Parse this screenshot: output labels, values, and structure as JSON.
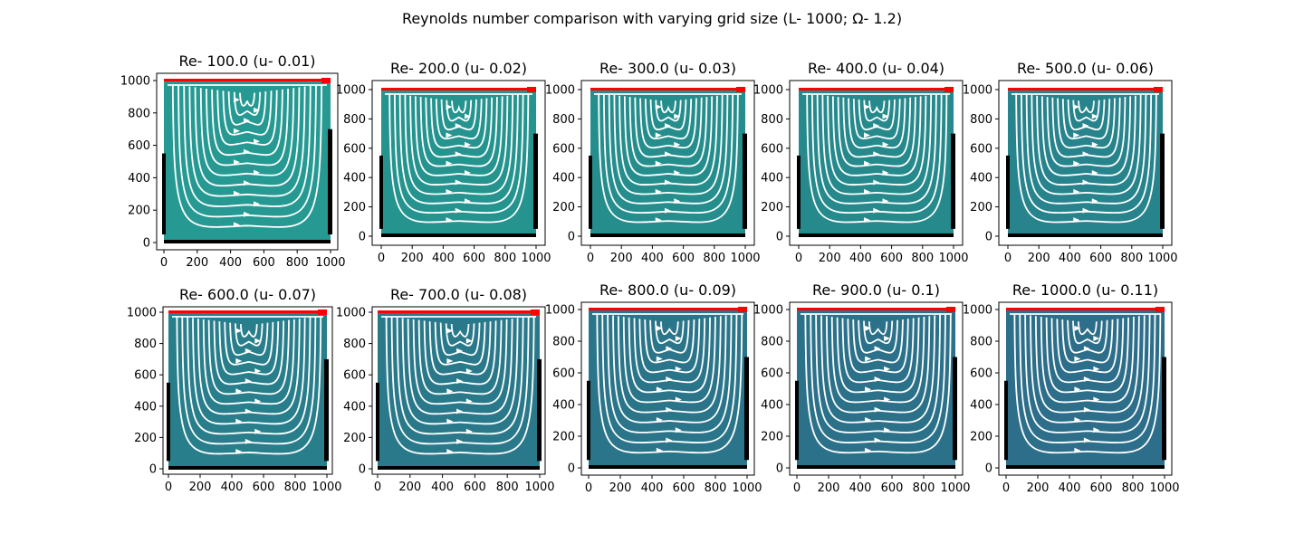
{
  "figure": {
    "suptitle": "Reynolds number comparison with varying grid size (L- 1000; Ω- 1.2)"
  },
  "colors": {
    "background": "#ffffff",
    "streamline": "#ffffff",
    "wall": "#000000",
    "lid": "#ff0000"
  },
  "chart_data": [
    {
      "type": "streamplot",
      "title": "Re- 100.0 (u- 0.01)",
      "xlim": [
        0,
        1000
      ],
      "ylim": [
        0,
        1000
      ],
      "xticks": [
        0,
        200,
        400,
        600,
        800,
        1000
      ],
      "yticks": [
        0,
        200,
        400,
        600,
        800,
        1000
      ],
      "fill": "#269a92"
    },
    {
      "type": "streamplot",
      "title": "Re- 200.0 (u- 0.02)",
      "xlim": [
        0,
        1000
      ],
      "ylim": [
        0,
        1000
      ],
      "xticks": [
        0,
        200,
        400,
        600,
        800,
        1000
      ],
      "yticks": [
        0,
        200,
        400,
        600,
        800,
        1000
      ],
      "fill": "#25948f"
    },
    {
      "type": "streamplot",
      "title": "Re- 300.0 (u- 0.03)",
      "xlim": [
        0,
        1000
      ],
      "ylim": [
        0,
        1000
      ],
      "xticks": [
        0,
        200,
        400,
        600,
        800,
        1000
      ],
      "yticks": [
        0,
        200,
        400,
        600,
        800,
        1000
      ],
      "fill": "#258e8d"
    },
    {
      "type": "streamplot",
      "title": "Re- 400.0 (u- 0.04)",
      "xlim": [
        0,
        1000
      ],
      "ylim": [
        0,
        1000
      ],
      "xticks": [
        0,
        200,
        400,
        600,
        800,
        1000
      ],
      "yticks": [
        0,
        200,
        400,
        600,
        800,
        1000
      ],
      "fill": "#26898c"
    },
    {
      "type": "streamplot",
      "title": "Re- 500.0 (u- 0.06)",
      "xlim": [
        0,
        1000
      ],
      "ylim": [
        0,
        1000
      ],
      "xticks": [
        0,
        200,
        400,
        600,
        800,
        1000
      ],
      "yticks": [
        0,
        200,
        400,
        600,
        800,
        1000
      ],
      "fill": "#27838c"
    },
    {
      "type": "streamplot",
      "title": "Re- 600.0 (u- 0.07)",
      "xlim": [
        0,
        1000
      ],
      "ylim": [
        0,
        1000
      ],
      "xticks": [
        0,
        200,
        400,
        600,
        800,
        1000
      ],
      "yticks": [
        0,
        200,
        400,
        600,
        800,
        1000
      ],
      "fill": "#287e8b"
    },
    {
      "type": "streamplot",
      "title": "Re- 700.0 (u- 0.08)",
      "xlim": [
        0,
        1000
      ],
      "ylim": [
        0,
        1000
      ],
      "xticks": [
        0,
        200,
        400,
        600,
        800,
        1000
      ],
      "yticks": [
        0,
        200,
        400,
        600,
        800,
        1000
      ],
      "fill": "#2a798a"
    },
    {
      "type": "streamplot",
      "title": "Re- 800.0 (u- 0.09)",
      "xlim": [
        0,
        1000
      ],
      "ylim": [
        0,
        1000
      ],
      "xticks": [
        0,
        200,
        400,
        600,
        800,
        1000
      ],
      "yticks": [
        0,
        200,
        400,
        600,
        800,
        1000
      ],
      "fill": "#2b758a"
    },
    {
      "type": "streamplot",
      "title": "Re- 900.0 (u- 0.1)",
      "xlim": [
        0,
        1000
      ],
      "ylim": [
        0,
        1000
      ],
      "xticks": [
        0,
        200,
        400,
        600,
        800,
        1000
      ],
      "yticks": [
        0,
        200,
        400,
        600,
        800,
        1000
      ],
      "fill": "#2c718a"
    },
    {
      "type": "streamplot",
      "title": "Re- 1000.0 (u- 0.11)",
      "xlim": [
        0,
        1000
      ],
      "ylim": [
        0,
        1000
      ],
      "xticks": [
        0,
        200,
        400,
        600,
        800,
        1000
      ],
      "yticks": [
        0,
        200,
        400,
        600,
        800,
        1000
      ],
      "fill": "#2d6e8a"
    }
  ]
}
